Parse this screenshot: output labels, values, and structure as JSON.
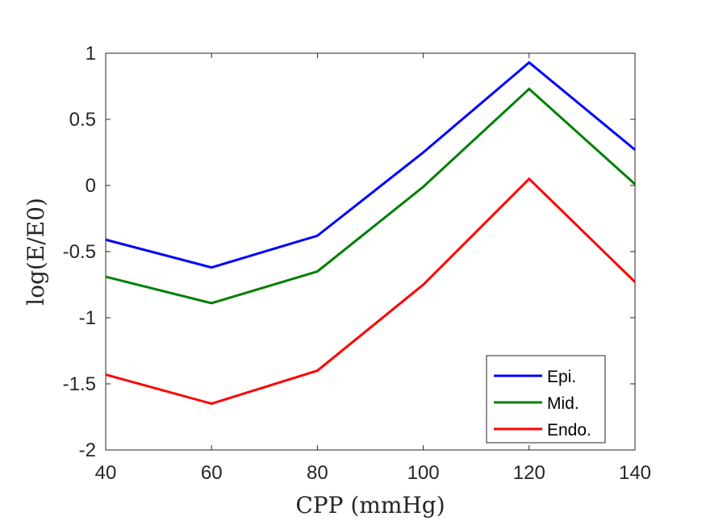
{
  "chart_data": {
    "type": "line",
    "title": "",
    "xlabel": "CPP (mmHg)",
    "ylabel": "log(E/E0)",
    "x": [
      40,
      60,
      80,
      100,
      120,
      140
    ],
    "xlim": [
      40,
      140
    ],
    "ylim": [
      -2,
      1
    ],
    "xticks": [
      40,
      60,
      80,
      100,
      120,
      140
    ],
    "xtick_labels": [
      "40",
      "60",
      "80",
      "100",
      "120",
      "140"
    ],
    "yticks": [
      -2,
      -1.5,
      -1,
      -0.5,
      0,
      0.5,
      1
    ],
    "ytick_labels": [
      "-2",
      "-1.5",
      "-1",
      "-0.5",
      "0",
      "0.5",
      "1"
    ],
    "grid": false,
    "legend_position": "bottom-right",
    "series": [
      {
        "name": "Epi.",
        "color": "#0000ff",
        "values": [
          -0.41,
          -0.62,
          -0.38,
          0.25,
          0.93,
          0.27
        ]
      },
      {
        "name": "Mid.",
        "color": "#008000",
        "values": [
          -0.69,
          -0.89,
          -0.65,
          -0.01,
          0.73,
          0.01
        ]
      },
      {
        "name": "Endo.",
        "color": "#ff0000",
        "values": [
          -1.43,
          -1.65,
          -1.4,
          -0.75,
          0.05,
          -0.73
        ]
      }
    ]
  }
}
